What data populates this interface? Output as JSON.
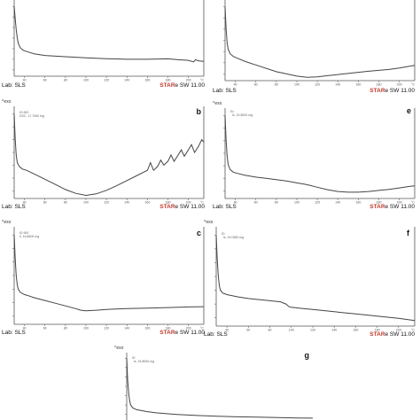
{
  "footer": {
    "lab": "Lab: SLS",
    "star_brand": "STAR",
    "star_rest": "e SW 11.00"
  },
  "yaxis_marker": "^exo",
  "accent_color": "#c0392b",
  "panels": [
    {
      "id": "p1",
      "letter": "",
      "annotation": "",
      "show_exo": false,
      "show_footer": true
    },
    {
      "id": "p2",
      "letter": "",
      "annotation": "",
      "show_exo": false,
      "show_footer": true
    },
    {
      "id": "b",
      "letter": "b",
      "annotation": "ID 600\nDSC, 17.7060 mg",
      "show_exo": true,
      "show_footer": true
    },
    {
      "id": "e",
      "letter": "e",
      "annotation": "Ex\n  Is, 15.8000 mg",
      "show_exo": true,
      "show_footer": true
    },
    {
      "id": "c",
      "letter": "c",
      "annotation": "ID 900\nIl, 16.8600 mg",
      "show_exo": true,
      "show_footer": true
    },
    {
      "id": "f",
      "letter": "f",
      "annotation": "ID\n  Is, 15.0380 mg",
      "show_exo": true,
      "show_footer": true
    },
    {
      "id": "g",
      "letter": "g",
      "annotation": "ID\n  Is, 15.8090 mg",
      "show_exo": true,
      "show_footer": false
    }
  ],
  "chart_data": [
    {
      "type": "line",
      "panel": "p1",
      "xlabel": "°C",
      "xticks": [
        40,
        60,
        80,
        100,
        120,
        140,
        160,
        180,
        200
      ],
      "xlim": [
        30,
        215
      ],
      "series": [
        {
          "x": [
            30,
            31,
            32,
            33,
            34,
            36,
            38,
            40,
            45,
            50,
            60,
            80,
            100,
            120,
            140,
            160,
            180,
            190,
            200,
            205,
            207,
            210,
            215
          ],
          "y": [
            0.0,
            -0.6,
            -1.1,
            -1.5,
            -1.75,
            -1.95,
            -2.05,
            -2.1,
            -2.18,
            -2.25,
            -2.32,
            -2.38,
            -2.43,
            -2.47,
            -2.5,
            -2.5,
            -2.48,
            -2.52,
            -2.55,
            -2.62,
            -2.52,
            -2.58,
            -2.6
          ]
        }
      ]
    },
    {
      "type": "line",
      "panel": "p2",
      "xlabel": "°C",
      "xticks": [
        40,
        60,
        80,
        100,
        120,
        140,
        160,
        180,
        200
      ],
      "xlim": [
        30,
        215
      ],
      "series": [
        {
          "x": [
            30,
            31,
            32,
            33,
            35,
            38,
            42,
            50,
            60,
            80,
            100,
            110,
            120,
            130,
            150,
            170,
            190,
            200,
            210,
            215
          ],
          "y": [
            0.0,
            -1.0,
            -1.6,
            -1.9,
            -2.1,
            -2.22,
            -2.3,
            -2.45,
            -2.6,
            -2.9,
            -3.1,
            -3.15,
            -3.13,
            -3.08,
            -2.98,
            -2.88,
            -2.8,
            -2.74,
            -2.66,
            -2.62
          ]
        }
      ]
    },
    {
      "type": "line",
      "panel": "b",
      "xlabel": "°C",
      "xticks": [
        40,
        60,
        80,
        100,
        120,
        140,
        160,
        180,
        200
      ],
      "xlim": [
        30,
        215
      ],
      "series": [
        {
          "x": [
            30,
            31,
            32,
            33,
            35,
            38,
            42,
            50,
            60,
            70,
            80,
            90,
            100,
            110,
            120,
            130,
            140,
            150,
            160,
            163,
            166,
            170,
            173,
            176,
            180,
            183,
            186,
            190,
            193,
            196,
            200,
            203,
            206,
            210,
            213,
            215
          ],
          "y": [
            0.0,
            -1.0,
            -1.6,
            -1.9,
            -2.05,
            -2.15,
            -2.2,
            -2.35,
            -2.55,
            -2.75,
            -2.95,
            -3.1,
            -3.18,
            -3.12,
            -2.98,
            -2.8,
            -2.6,
            -2.4,
            -2.2,
            -1.9,
            -2.2,
            -2.05,
            -1.8,
            -2.0,
            -1.85,
            -1.6,
            -1.85,
            -1.6,
            -1.4,
            -1.65,
            -1.4,
            -1.2,
            -1.5,
            -1.25,
            -1.0,
            -1.1
          ]
        }
      ]
    },
    {
      "type": "line",
      "panel": "e",
      "xlabel": "°C",
      "xticks": [
        40,
        60,
        80,
        100,
        120,
        140,
        160,
        180,
        200
      ],
      "xlim": [
        30,
        215
      ],
      "series": [
        {
          "x": [
            30,
            31,
            32,
            33,
            35,
            38,
            42,
            50,
            60,
            70,
            80,
            90,
            100,
            110,
            120,
            130,
            140,
            150,
            160,
            170,
            180,
            190,
            200,
            210,
            215
          ],
          "y": [
            0.0,
            -1.0,
            -1.6,
            -1.95,
            -2.15,
            -2.25,
            -2.3,
            -2.38,
            -2.45,
            -2.5,
            -2.55,
            -2.6,
            -2.68,
            -2.75,
            -2.85,
            -2.95,
            -3.02,
            -3.05,
            -3.05,
            -3.02,
            -2.98,
            -2.94,
            -2.88,
            -2.82,
            -2.8
          ]
        }
      ]
    },
    {
      "type": "line",
      "panel": "c",
      "xlabel": "°C",
      "xticks": [
        40,
        60,
        80,
        100,
        120,
        140,
        160,
        180,
        200
      ],
      "xlim": [
        30,
        215
      ],
      "series": [
        {
          "x": [
            30,
            31,
            32,
            33,
            34,
            36,
            40,
            45,
            50,
            60,
            70,
            80,
            90,
            95,
            100,
            110,
            120,
            140,
            160,
            180,
            200,
            215
          ],
          "y": [
            0.0,
            -0.9,
            -1.5,
            -1.85,
            -2.0,
            -2.12,
            -2.2,
            -2.26,
            -2.32,
            -2.42,
            -2.52,
            -2.62,
            -2.72,
            -2.78,
            -2.8,
            -2.78,
            -2.75,
            -2.72,
            -2.7,
            -2.68,
            -2.66,
            -2.65
          ]
        }
      ]
    },
    {
      "type": "line",
      "panel": "f",
      "xlabel": "°C",
      "xticks": [
        40,
        60,
        80,
        100,
        120,
        140,
        160,
        180,
        200
      ],
      "xlim": [
        30,
        215
      ],
      "series": [
        {
          "x": [
            30,
            31,
            32,
            33,
            34,
            36,
            40,
            45,
            50,
            60,
            80,
            90,
            95,
            98,
            100,
            110,
            120,
            140,
            160,
            180,
            200,
            215
          ],
          "y": [
            0.0,
            -0.9,
            -1.5,
            -1.85,
            -2.0,
            -2.1,
            -2.16,
            -2.2,
            -2.24,
            -2.3,
            -2.38,
            -2.42,
            -2.5,
            -2.6,
            -2.62,
            -2.66,
            -2.7,
            -2.78,
            -2.86,
            -2.94,
            -3.02,
            -3.1
          ]
        }
      ]
    },
    {
      "type": "line",
      "panel": "g",
      "xlabel": "°C",
      "xticks": [
        40,
        60,
        80,
        100,
        120,
        140,
        160,
        180,
        200
      ],
      "xlim": [
        30,
        215
      ],
      "series": [
        {
          "x": [
            30,
            31,
            32,
            33,
            34,
            36,
            40,
            50,
            60,
            80,
            100,
            120,
            140,
            160,
            180,
            200,
            215
          ],
          "y": [
            0.0,
            -1.2,
            -1.9,
            -2.3,
            -2.5,
            -2.65,
            -2.75,
            -2.85,
            -2.92,
            -3.0,
            -3.06,
            -3.1,
            -3.13,
            -3.15,
            -3.17,
            -3.19,
            -3.2
          ]
        }
      ]
    }
  ]
}
